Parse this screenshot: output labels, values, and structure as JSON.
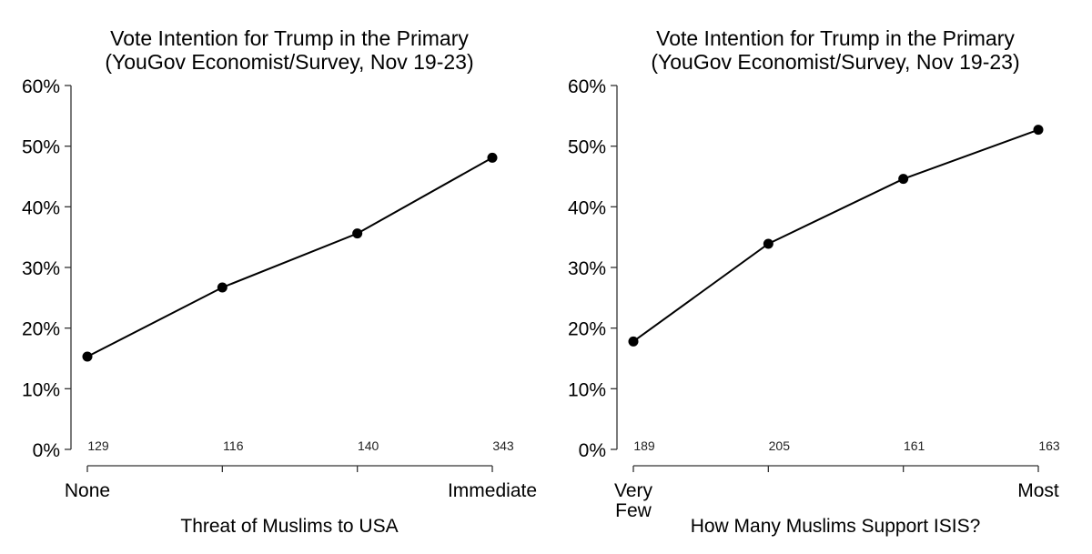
{
  "chart_data": [
    {
      "type": "line",
      "title": "Vote Intention for Trump in the Primary",
      "subtitle": "(YouGov Economist/Survey, Nov 19-23)",
      "xlabel": "Threat of Muslims to USA",
      "ylabel": "",
      "ylim": [
        0,
        60
      ],
      "yticks": [
        0,
        10,
        20,
        30,
        40,
        50,
        60
      ],
      "ytick_labels": [
        "0%",
        "10%",
        "20%",
        "30%",
        "40%",
        "50%",
        "60%"
      ],
      "categories": [
        "None",
        "",
        "",
        "Immediate"
      ],
      "category_label_lines": [
        [
          "None"
        ],
        [],
        [],
        [
          "Immediate"
        ]
      ],
      "values": [
        15.3,
        26.7,
        35.6,
        48.1
      ],
      "sample_sizes": [
        "129",
        "116",
        "140",
        "343"
      ],
      "grid": false,
      "legend": "none"
    },
    {
      "type": "line",
      "title": "Vote Intention for Trump in the Primary",
      "subtitle": "(YouGov Economist/Survey, Nov 19-23)",
      "xlabel": "How Many Muslims Support ISIS?",
      "ylabel": "",
      "ylim": [
        0,
        60
      ],
      "yticks": [
        0,
        10,
        20,
        30,
        40,
        50,
        60
      ],
      "ytick_labels": [
        "0%",
        "10%",
        "20%",
        "30%",
        "40%",
        "50%",
        "60%"
      ],
      "categories": [
        "Very Few",
        "",
        "",
        "Most"
      ],
      "category_label_lines": [
        [
          "Very",
          "Few"
        ],
        [],
        [],
        [
          "Most"
        ]
      ],
      "values": [
        17.8,
        33.9,
        44.6,
        52.7
      ],
      "sample_sizes": [
        "189",
        "205",
        "161",
        "163"
      ],
      "grid": false,
      "legend": "none"
    }
  ]
}
